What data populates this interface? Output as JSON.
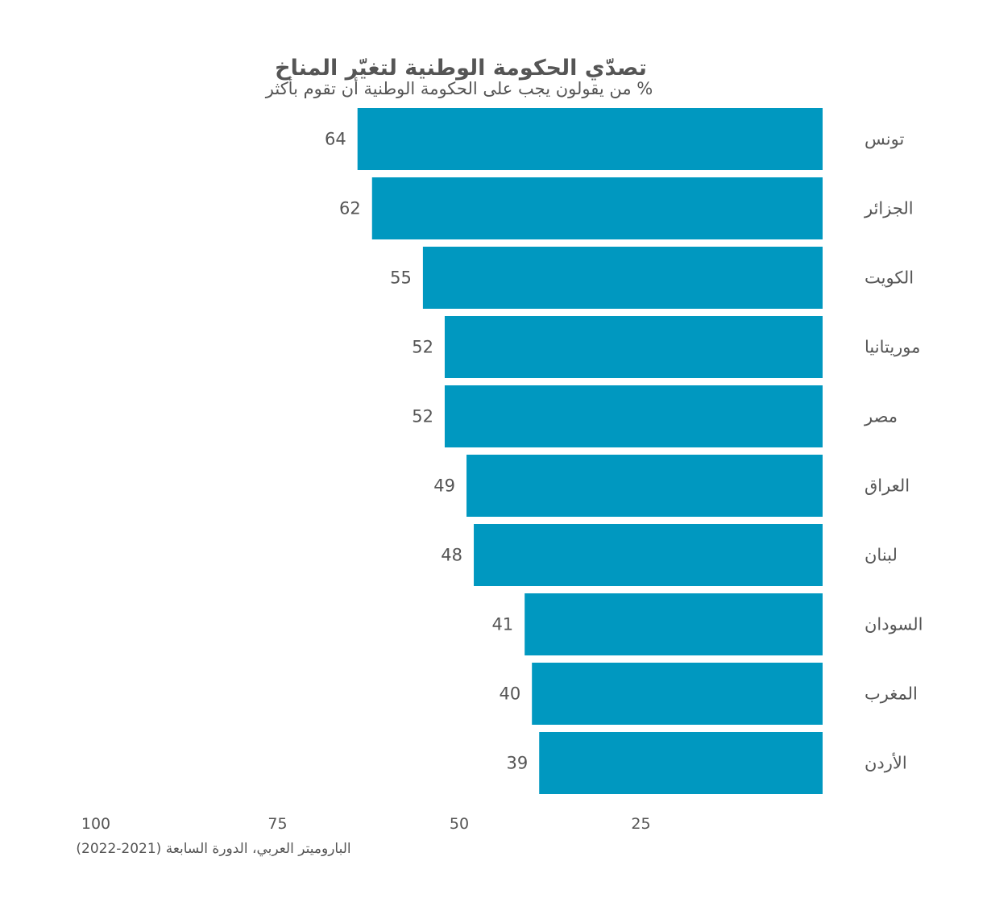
{
  "colors": {
    "bar": "#0098c0",
    "text": "#555555",
    "background": "#ffffff"
  },
  "chart_data": {
    "type": "bar",
    "orientation": "horizontal",
    "direction": "right-to-left",
    "title": "تصدّي الحكومة الوطنية لتغيّر المناخ",
    "subtitle": "% من يقولون يجب على الحكومة الوطنية أن تقوم بأكثر",
    "categories": [
      "تونس",
      "الجزائر",
      "الكويت",
      "موريتانيا",
      "مصر",
      "العراق",
      "لبنان",
      "السودان",
      "المغرب",
      "الأردن"
    ],
    "values": [
      64,
      62,
      55,
      52,
      52,
      49,
      48,
      41,
      40,
      39
    ],
    "value_labels": [
      "64",
      "62",
      "55",
      "52",
      "52",
      "49",
      "48",
      "41",
      "40",
      "39"
    ],
    "xlim": [
      0,
      100
    ],
    "ticks": [
      100,
      75,
      50,
      25
    ],
    "tick_labels": [
      "100",
      "75",
      "50",
      "25"
    ],
    "grid": false,
    "legend": "none",
    "source": "الباروميتر العربي، الدورة السابعة (2021-2022)"
  }
}
